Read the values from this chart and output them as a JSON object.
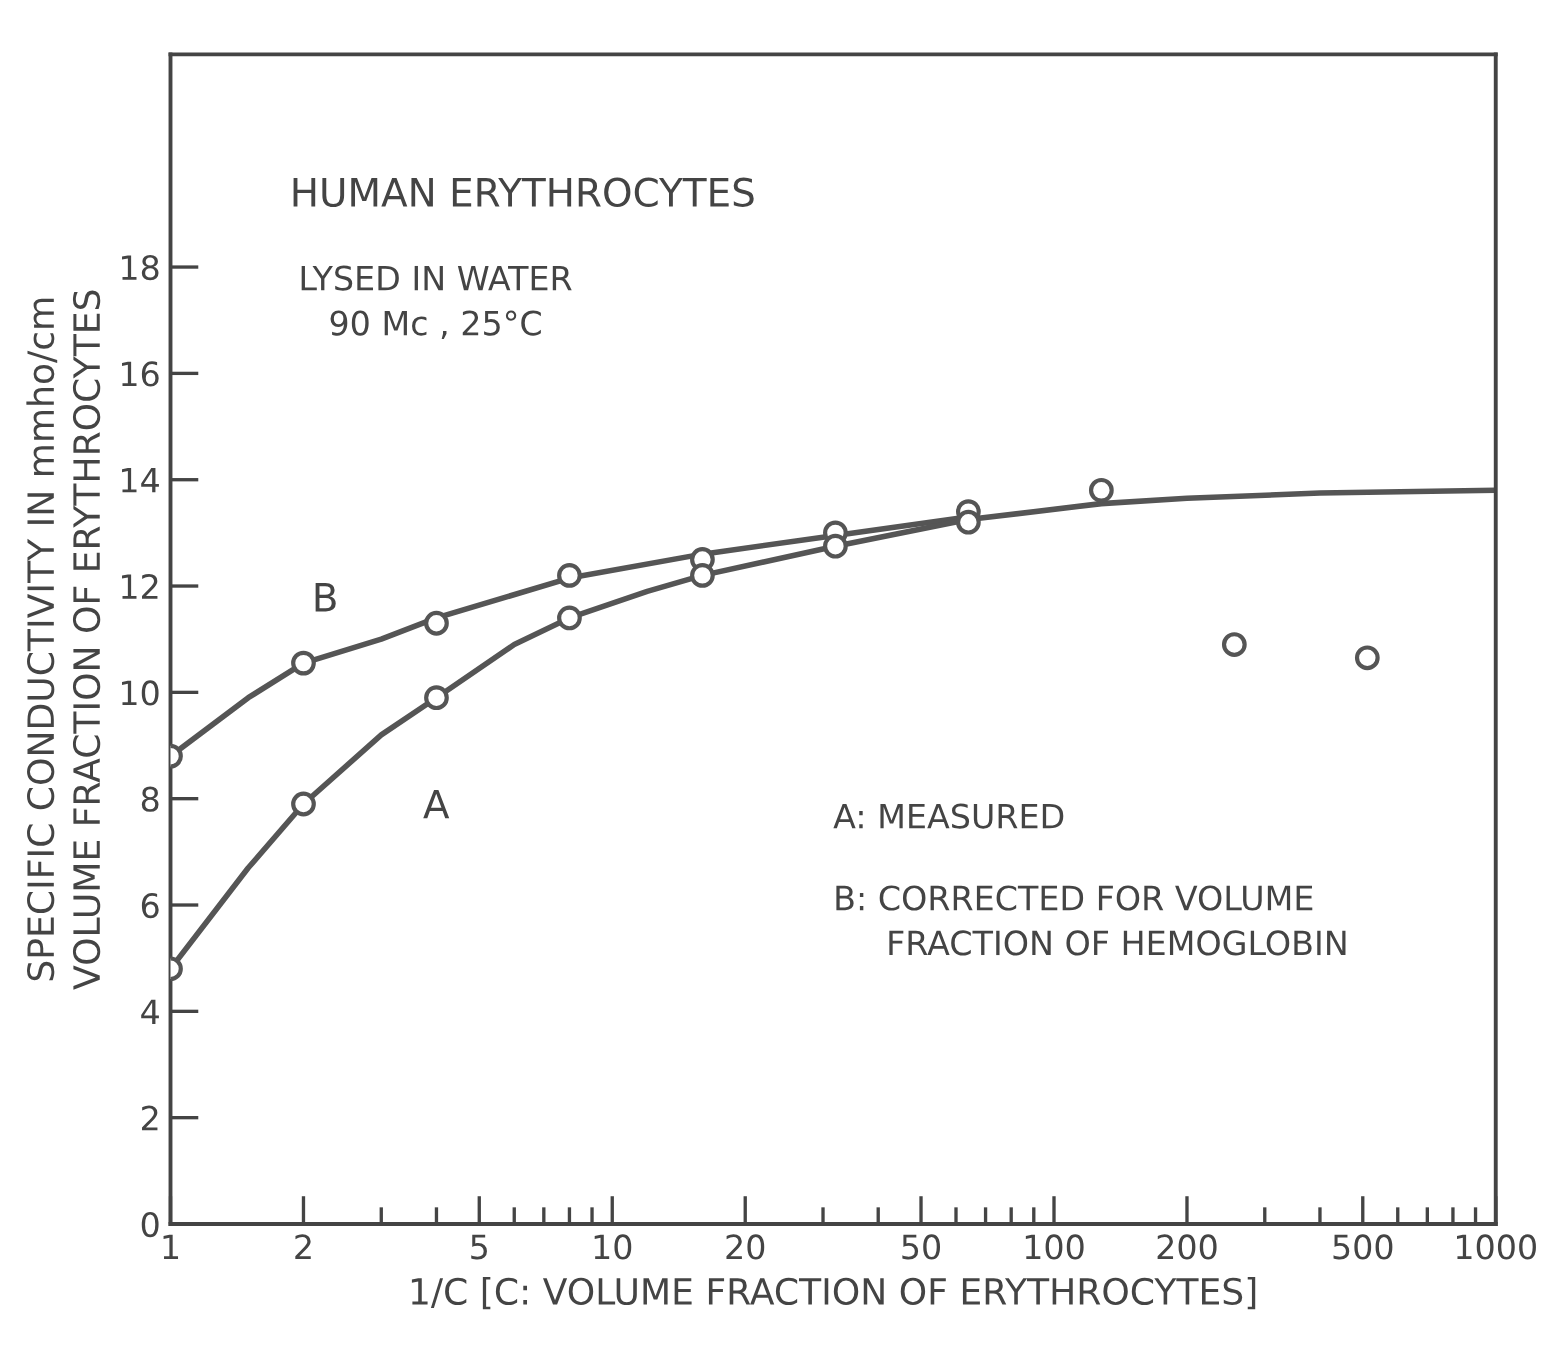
{
  "chart_data": {
    "type": "line",
    "title": "HUMAN ERYTHROCYTES",
    "subtitle": "LYSED IN WATER\n90 Mc , 25°C",
    "xlabel": "1/C [C: VOLUME FRACTION OF ERYTHROCYTES]",
    "ylabel": "SPECIFIC CONDUCTIVITY IN mmho/cm\nVOLUME FRACTION OF ERYTHROCYTES",
    "log": "x",
    "xlim": [
      1,
      1000
    ],
    "ylim": [
      0,
      22
    ],
    "xticks": [
      1,
      2,
      {
        "value": 3,
        "label": null
      },
      {
        "value": 4,
        "label": null
      },
      5,
      {
        "value": 6,
        "label": null
      },
      {
        "value": 7,
        "label": null
      },
      {
        "value": 8,
        "label": null
      },
      {
        "value": 9,
        "label": null
      },
      10,
      20,
      {
        "value": 30,
        "label": null
      },
      {
        "value": 40,
        "label": null
      },
      50,
      {
        "value": 60,
        "label": null
      },
      {
        "value": 70,
        "label": null
      },
      {
        "value": 80,
        "label": null
      },
      {
        "value": 90,
        "label": null
      },
      100,
      200,
      {
        "value": 300,
        "label": null
      },
      {
        "value": 400,
        "label": null
      },
      500,
      {
        "value": 600,
        "label": null
      },
      {
        "value": 700,
        "label": null
      },
      {
        "value": 800,
        "label": null
      },
      {
        "value": 900,
        "label": null
      },
      1000
    ],
    "yticks": [
      0,
      2,
      4,
      6,
      8,
      10,
      12,
      14,
      16,
      18
    ],
    "grid": false,
    "legend": false,
    "annotations": [
      "A: MEASURED",
      "B: CORRECTED FOR VOLUME\n     FRACTION OF HEMOGLOBIN"
    ],
    "series": [
      {
        "name": "B",
        "color": "#555555",
        "marker": "none",
        "x": [
          1,
          1.5,
          2,
          3,
          4,
          8,
          16,
          32,
          64
        ],
        "values": [
          8.8,
          9.9,
          10.55,
          11.0,
          11.4,
          12.15,
          12.6,
          12.95,
          13.3
        ]
      },
      {
        "name": "A",
        "color": "#555555",
        "marker": "none",
        "x": [
          1,
          1.5,
          2,
          3,
          4,
          6,
          8,
          12,
          16,
          32,
          64,
          128,
          200,
          400,
          1000
        ],
        "values": [
          4.8,
          6.7,
          7.9,
          9.2,
          9.9,
          10.9,
          11.4,
          11.9,
          12.2,
          12.75,
          13.25,
          13.55,
          13.65,
          13.75,
          13.8
        ]
      },
      {
        "type": "scatter",
        "color": "#555555",
        "marker": "circle",
        "x": [
          1,
          2,
          4,
          8,
          16,
          32,
          64
        ],
        "values": [
          8.8,
          10.55,
          11.3,
          12.2,
          12.5,
          13.0,
          13.4
        ]
      },
      {
        "type": "scatter",
        "color": "#555555",
        "marker": "circle",
        "x": [
          1,
          2,
          4,
          8,
          16,
          32,
          64
        ],
        "values": [
          4.8,
          7.9,
          9.9,
          11.4,
          12.2,
          12.75,
          13.2
        ]
      },
      {
        "type": "scatter",
        "color": "#555555",
        "marker": "circle",
        "x": [
          128,
          256,
          512
        ],
        "values": [
          13.8,
          10.9,
          10.65
        ]
      }
    ]
  }
}
